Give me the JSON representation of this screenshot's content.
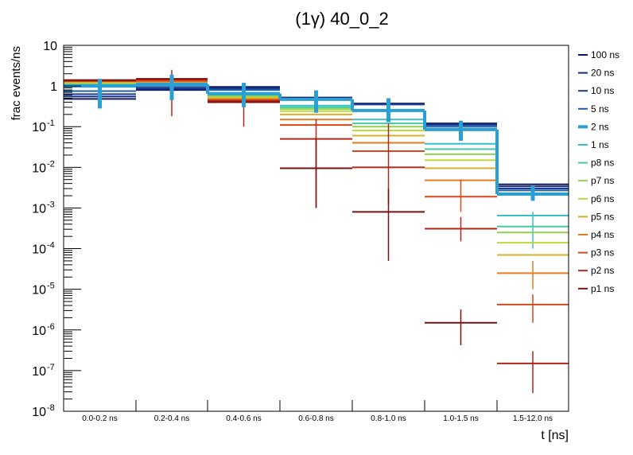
{
  "chart_data": {
    "type": "line",
    "title": "(1γ) 40_0_2",
    "xlabel": "t [ns]",
    "ylabel": "frac events/ns",
    "yscale": "log",
    "ylim": [
      1e-08,
      10
    ],
    "y_ticks": [
      {
        "base": "10",
        "exp": "-8"
      },
      {
        "base": "10",
        "exp": "-7"
      },
      {
        "base": "10",
        "exp": "-6"
      },
      {
        "base": "10",
        "exp": "-5"
      },
      {
        "base": "10",
        "exp": "-4"
      },
      {
        "base": "10",
        "exp": "-3"
      },
      {
        "base": "10",
        "exp": "-2"
      },
      {
        "base": "10",
        "exp": "-1"
      },
      {
        "base": "1",
        "exp": ""
      },
      {
        "base": "10",
        "exp": ""
      }
    ],
    "categories": [
      "0.0-0.2 ns",
      "0.2-0.4 ns",
      "0.4-0.6 ns",
      "0.6-0.8 ns",
      "0.8-1.0 ns",
      "1.0-1.5 ns",
      "1.5-12.0 ns"
    ],
    "legend_position": "right",
    "grid": false,
    "series": [
      {
        "name": "100 ns",
        "color": "#0c1a5e",
        "width": 2,
        "values": [
          0.48,
          0.8,
          0.95,
          0.52,
          0.37,
          0.12,
          0.0038
        ],
        "errors": [
          null,
          null,
          null,
          null,
          null,
          null,
          null
        ]
      },
      {
        "name": "20 ns",
        "color": "#142a7a",
        "width": 2,
        "values": [
          0.55,
          0.85,
          0.9,
          0.5,
          0.36,
          0.115,
          0.0034
        ],
        "errors": [
          null,
          null,
          null,
          null,
          null,
          null,
          null
        ]
      },
      {
        "name": "10 ns",
        "color": "#1a3d8f",
        "width": 2,
        "values": [
          0.63,
          0.9,
          0.85,
          0.49,
          0.35,
          0.11,
          0.003
        ],
        "errors": [
          null,
          null,
          null,
          null,
          null,
          null,
          null
        ]
      },
      {
        "name": "5 ns",
        "color": "#1f5fa6",
        "width": 2,
        "values": [
          0.75,
          0.95,
          0.8,
          0.48,
          0.26,
          0.1,
          0.0027
        ],
        "errors": [
          null,
          null,
          null,
          null,
          null,
          null,
          null
        ]
      },
      {
        "name": "2 ns",
        "color": "#2a9fd4",
        "width": 4,
        "values": [
          1.0,
          1.1,
          0.65,
          0.47,
          0.25,
          0.085,
          0.0022
        ],
        "errors": [
          [
            0.28,
            1.5
          ],
          [
            0.45,
            1.9
          ],
          [
            0.3,
            1.2
          ],
          [
            0.22,
            0.78
          ],
          [
            0.13,
            0.5
          ],
          [
            0.045,
            0.14
          ],
          [
            0.0015,
            0.0035
          ]
        ]
      },
      {
        "name": "1 ns",
        "color": "#36c2c7",
        "width": 2,
        "values": [
          1.1,
          1.15,
          0.6,
          0.33,
          0.15,
          0.038,
          0.00065
        ],
        "errors": [
          null,
          null,
          null,
          null,
          null,
          null,
          [
            0.0001,
            0.0008
          ]
        ]
      },
      {
        "name": "p8 ns",
        "color": "#48c8a0",
        "width": 2,
        "values": [
          1.15,
          1.18,
          0.57,
          0.3,
          0.12,
          0.028,
          0.00035
        ],
        "errors": [
          null,
          null,
          null,
          null,
          null,
          null,
          null
        ]
      },
      {
        "name": "p7 ns",
        "color": "#8ed24f",
        "width": 2,
        "values": [
          1.18,
          1.2,
          0.55,
          0.27,
          0.1,
          0.021,
          0.00025
        ],
        "errors": [
          null,
          null,
          null,
          null,
          null,
          null,
          null
        ]
      },
      {
        "name": "p6 ns",
        "color": "#bcd83a",
        "width": 2,
        "values": [
          1.2,
          1.22,
          0.53,
          0.24,
          0.08,
          0.015,
          0.00014
        ],
        "errors": [
          null,
          null,
          null,
          null,
          null,
          null,
          null
        ]
      },
      {
        "name": "p5 ns",
        "color": "#d6b22c",
        "width": 2,
        "values": [
          1.25,
          1.25,
          0.5,
          0.2,
          0.06,
          0.0095,
          7e-05
        ],
        "errors": [
          null,
          null,
          null,
          null,
          null,
          null,
          null
        ]
      },
      {
        "name": "p4 ns",
        "color": "#e37b1f",
        "width": 2,
        "values": [
          1.3,
          1.3,
          0.47,
          0.15,
          0.04,
          0.0048,
          2.5e-05
        ],
        "errors": [
          null,
          null,
          null,
          null,
          null,
          null,
          [
            1e-05,
            5e-05
          ]
        ]
      },
      {
        "name": "p3 ns",
        "color": "#d9481c",
        "width": 2,
        "values": [
          1.33,
          1.35,
          0.45,
          0.11,
          0.025,
          0.0019,
          4.2e-06
        ],
        "errors": [
          null,
          null,
          null,
          null,
          null,
          [
            0.0008,
            0.005
          ],
          [
            1.5e-06,
            7.5e-06
          ]
        ]
      },
      {
        "name": "p2 ns",
        "color": "#b5261a",
        "width": 2,
        "values": [
          1.35,
          1.45,
          0.43,
          0.05,
          0.01,
          0.00031,
          1.5e-07
        ],
        "errors": [
          null,
          [
            0.18,
            2.5
          ],
          [
            0.1,
            0.8
          ],
          [
            0.001,
            0.15
          ],
          [
            0.0012,
            0.12
          ],
          [
            0.00015,
            0.0006
          ],
          [
            2.8e-08,
            3e-07
          ]
        ]
      },
      {
        "name": "p1 ns",
        "color": "#7a1010",
        "width": 2,
        "values": [
          1.4,
          1.5,
          0.4,
          0.0095,
          0.0008,
          1.5e-06,
          null
        ],
        "errors": [
          null,
          null,
          null,
          [
            0.001,
            0.05
          ],
          [
            5e-05,
            0.003
          ],
          [
            4.2e-07,
            3.2e-06
          ],
          null
        ]
      }
    ]
  }
}
